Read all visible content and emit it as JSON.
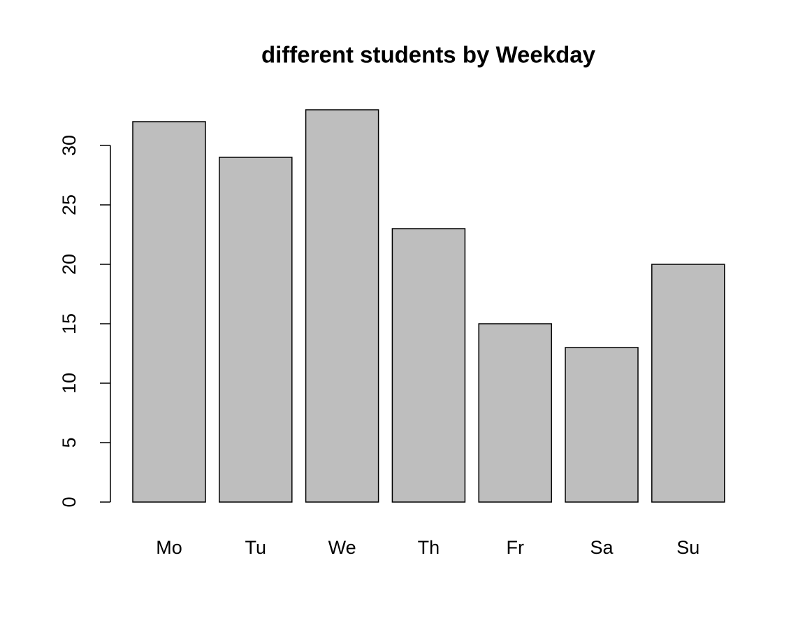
{
  "chart_data": {
    "type": "bar",
    "title": "different students by Weekday",
    "categories": [
      "Mo",
      "Tu",
      "We",
      "Th",
      "Fr",
      "Sa",
      "Su"
    ],
    "values": [
      32,
      29,
      33,
      23,
      15,
      13,
      20
    ],
    "color": "#bebebe",
    "ylim": [
      0,
      33
    ],
    "yticks": [
      0,
      5,
      10,
      15,
      20,
      25,
      30
    ],
    "grid": false
  }
}
